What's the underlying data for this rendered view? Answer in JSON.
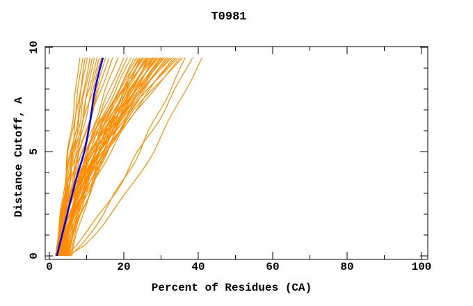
{
  "chart_data": {
    "type": "line",
    "title": "T0981",
    "xlabel": "Percent of Residues (CA)",
    "ylabel": "Distance Cutoff, A",
    "x_axis": {
      "min": 0,
      "max": 100,
      "major_ticks": [
        0,
        20,
        40,
        60,
        80,
        100
      ],
      "major_tick_labels": [
        "0",
        "20",
        "40",
        "60",
        "80",
        "100"
      ],
      "minor_ticks": [
        10,
        30,
        50,
        70,
        90
      ]
    },
    "y_axis": {
      "min": 0,
      "max": 10,
      "major_ticks": [
        0,
        5,
        10
      ],
      "major_tick_labels": [
        "0",
        "5",
        "10"
      ],
      "minor_ticks": [
        1,
        2,
        3,
        4,
        6,
        7,
        8,
        9
      ]
    },
    "grid": false,
    "legend": "none",
    "colors": {
      "model_curves": "#ff8c00",
      "highlight_curve": "#0000ee",
      "axis": "#000000",
      "background": "#ffffff"
    },
    "y_step": 0.5,
    "y_data_max": 9.5,
    "highlight_curve": {
      "name": "highlighted-model",
      "points_xy": [
        [
          2.0,
          0.0
        ],
        [
          2.7,
          0.5
        ],
        [
          3.4,
          1.0
        ],
        [
          4.1,
          1.5
        ],
        [
          4.8,
          2.0
        ],
        [
          5.5,
          2.5
        ],
        [
          6.2,
          3.0
        ],
        [
          6.9,
          3.5
        ],
        [
          7.7,
          4.0
        ],
        [
          8.6,
          4.5
        ],
        [
          9.4,
          5.0
        ],
        [
          10.0,
          5.5
        ],
        [
          10.5,
          6.0
        ],
        [
          11.0,
          6.5
        ],
        [
          11.4,
          7.0
        ],
        [
          11.8,
          7.5
        ],
        [
          12.3,
          8.0
        ],
        [
          12.9,
          8.5
        ],
        [
          13.6,
          9.0
        ],
        [
          14.4,
          9.5
        ]
      ]
    },
    "model_curve_param_format": [
      "start_x_percent",
      "end_x_percent_at_9.5A",
      "shape_exponent",
      "wobble_amplitude",
      "wobble_frequency",
      "wobble_phase"
    ],
    "model_curves": [
      [
        1.8,
        8.2,
        1.05,
        0.3,
        2.1,
        0.5
      ],
      [
        2.0,
        9.0,
        1.15,
        0.4,
        1.8,
        2.0
      ],
      [
        1.6,
        9.6,
        1.0,
        0.3,
        2.4,
        1.0
      ],
      [
        2.2,
        10.2,
        1.2,
        0.5,
        1.6,
        4.0
      ],
      [
        1.9,
        10.9,
        1.1,
        0.3,
        2.0,
        2.6
      ],
      [
        2.4,
        11.5,
        1.25,
        0.45,
        2.2,
        0.2
      ],
      [
        2.1,
        12.1,
        1.1,
        0.35,
        1.7,
        3.1
      ],
      [
        1.7,
        12.8,
        1.2,
        0.5,
        2.5,
        5.0
      ],
      [
        2.3,
        13.4,
        1.15,
        0.4,
        1.9,
        1.4
      ],
      [
        2.0,
        14.0,
        1.3,
        0.45,
        2.3,
        2.2
      ],
      [
        2.5,
        15.1,
        1.2,
        0.5,
        1.5,
        3.7
      ],
      [
        2.2,
        16.0,
        1.25,
        0.4,
        2.0,
        0.9
      ],
      [
        1.9,
        17.0,
        1.3,
        0.55,
        1.8,
        4.5
      ],
      [
        2.6,
        18.5,
        1.35,
        0.6,
        1.7,
        2.8
      ],
      [
        3.0,
        20.0,
        1.4,
        0.5,
        2.1,
        1.2
      ],
      [
        2.8,
        21.0,
        1.45,
        0.55,
        1.9,
        5.3
      ],
      [
        3.2,
        22.0,
        1.5,
        0.6,
        1.8,
        0.4
      ],
      [
        3.5,
        22.8,
        1.4,
        0.5,
        2.2,
        2.9
      ],
      [
        2.9,
        23.5,
        1.6,
        0.7,
        1.6,
        1.8
      ],
      [
        4.0,
        24.0,
        1.45,
        0.55,
        2.0,
        4.2
      ],
      [
        3.3,
        24.5,
        1.7,
        0.6,
        1.9,
        0.8
      ],
      [
        3.8,
        25.0,
        1.5,
        0.65,
        2.3,
        3.5
      ],
      [
        3.1,
        25.4,
        1.75,
        0.5,
        1.7,
        5.8
      ],
      [
        4.2,
        25.8,
        1.4,
        0.6,
        2.1,
        1.5
      ],
      [
        3.6,
        26.2,
        1.6,
        0.7,
        1.8,
        2.4
      ],
      [
        3.0,
        26.6,
        1.8,
        0.55,
        2.4,
        4.8
      ],
      [
        4.5,
        27.0,
        1.5,
        0.6,
        1.6,
        0.2
      ],
      [
        3.4,
        27.4,
        1.65,
        0.7,
        2.0,
        3.0
      ],
      [
        3.9,
        27.8,
        1.55,
        0.5,
        2.2,
        5.1
      ],
      [
        3.2,
        28.2,
        1.7,
        0.65,
        1.9,
        1.1
      ],
      [
        4.3,
        28.6,
        1.45,
        0.6,
        1.7,
        2.7
      ],
      [
        3.7,
        29.0,
        1.6,
        0.7,
        2.1,
        4.4
      ],
      [
        3.3,
        29.4,
        1.8,
        0.55,
        1.8,
        0.6
      ],
      [
        4.6,
        29.8,
        1.5,
        0.6,
        2.3,
        3.3
      ],
      [
        3.5,
        30.2,
        1.65,
        0.7,
        1.6,
        5.6
      ],
      [
        4.0,
        30.6,
        1.55,
        0.5,
        2.0,
        1.9
      ],
      [
        3.6,
        31.0,
        1.75,
        0.65,
        1.8,
        2.5
      ],
      [
        4.8,
        31.5,
        1.45,
        0.6,
        2.2,
        4.1
      ],
      [
        3.8,
        32.0,
        1.6,
        0.7,
        1.9,
        0.3
      ],
      [
        4.1,
        32.5,
        1.7,
        0.55,
        1.7,
        3.9
      ],
      [
        3.4,
        33.0,
        1.85,
        0.6,
        2.1,
        5.4
      ],
      [
        4.9,
        33.5,
        1.5,
        0.65,
        1.8,
        1.6
      ],
      [
        4.2,
        34.0,
        1.65,
        0.7,
        2.0,
        2.2
      ],
      [
        3.9,
        34.6,
        1.75,
        0.5,
        2.4,
        4.7
      ],
      [
        5.1,
        35.2,
        1.55,
        0.6,
        1.6,
        0.7
      ],
      [
        4.4,
        35.8,
        1.7,
        0.65,
        1.9,
        3.6
      ],
      [
        5.3,
        30.0,
        1.35,
        0.6,
        2.0,
        2.0
      ],
      [
        5.0,
        28.0,
        1.3,
        0.55,
        1.8,
        4.9
      ],
      [
        5.6,
        26.5,
        1.25,
        0.6,
        2.2,
        1.3
      ],
      [
        6.0,
        24.5,
        1.2,
        0.5,
        1.7,
        3.8
      ],
      [
        4.5,
        38.5,
        0.85,
        0.6,
        1.8,
        2.1
      ],
      [
        5.0,
        41.0,
        0.72,
        0.5,
        1.5,
        0.9
      ],
      [
        5.5,
        36.5,
        0.8,
        0.5,
        2.0,
        5.0
      ]
    ]
  }
}
